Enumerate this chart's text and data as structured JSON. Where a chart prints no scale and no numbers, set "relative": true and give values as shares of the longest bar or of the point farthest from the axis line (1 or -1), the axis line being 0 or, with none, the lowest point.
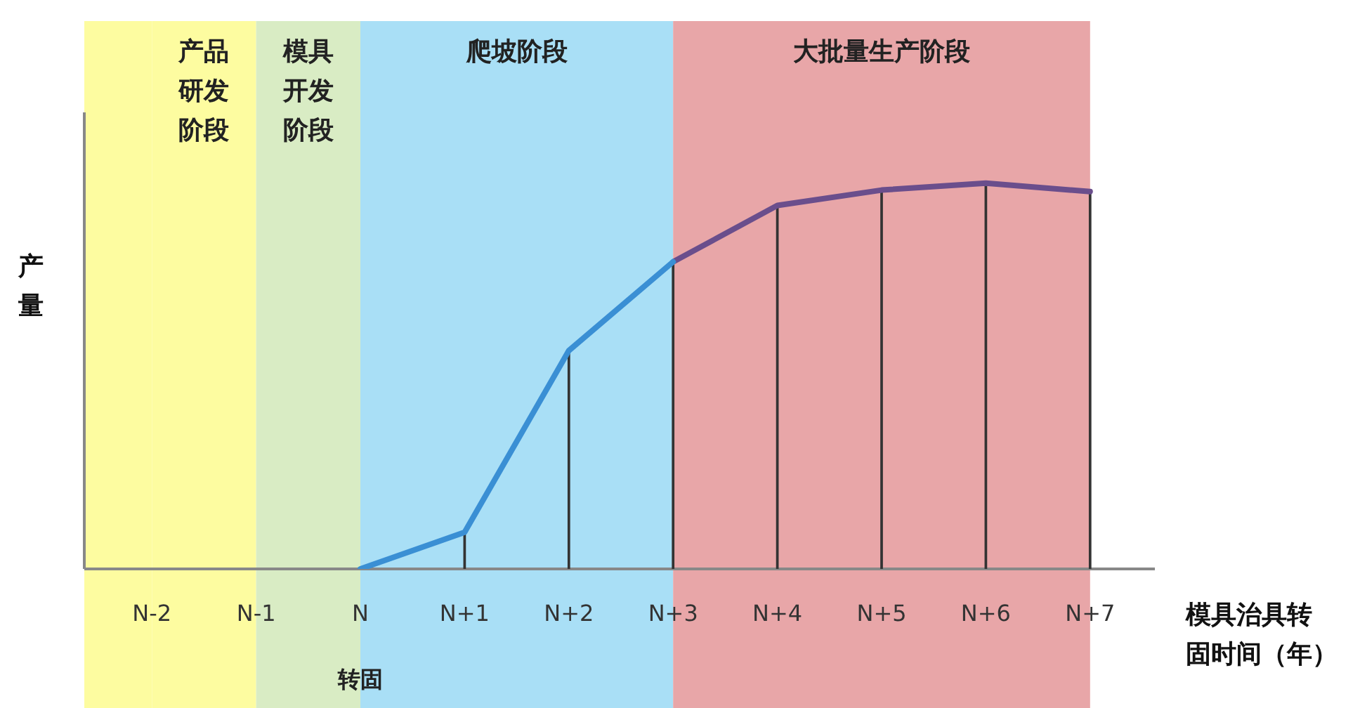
{
  "chart_data": {
    "type": "line",
    "relative": true,
    "categories": [
      "N-2",
      "N-1",
      "N",
      "N+1",
      "N+2",
      "N+3",
      "N+4",
      "N+5",
      "N+6",
      "N+7"
    ],
    "series": [
      {
        "color": "#3a8fd4",
        "values": [
          null,
          null,
          0,
          0.095,
          0.566,
          0.796,
          null,
          null,
          null,
          null
        ]
      },
      {
        "color": "#6a4e8c",
        "values": [
          null,
          null,
          null,
          null,
          null,
          0.796,
          0.942,
          0.982,
          1,
          0.978
        ]
      },
      {
        "type": "bar",
        "color": "#333333",
        "values": [
          null,
          null,
          null,
          0.095,
          0.566,
          0.796,
          0.942,
          0.982,
          1,
          0.978
        ]
      }
    ],
    "bands": [
      {
        "axis": "x",
        "from": "N-2",
        "to": "N-1",
        "label": "产品研发阶段",
        "color": "#fdfca0"
      },
      {
        "axis": "x",
        "from": "N-1",
        "to": "N",
        "label": "模具开发阶段",
        "color": "#d9ecc4"
      },
      {
        "axis": "x",
        "from": "N",
        "to": "N+3",
        "label": "爬坡阶段",
        "color": "#a9dff6"
      },
      {
        "axis": "x",
        "from": "N+3",
        "to": "N+7",
        "label": "大批量生产阶段",
        "color": "#e8a6a8"
      }
    ],
    "ylabel": "产量",
    "xlabel": "模具治具转固时间（年）",
    "annotations": [
      "转固"
    ],
    "marker": "none",
    "line_style": "solid",
    "legend": false
  }
}
